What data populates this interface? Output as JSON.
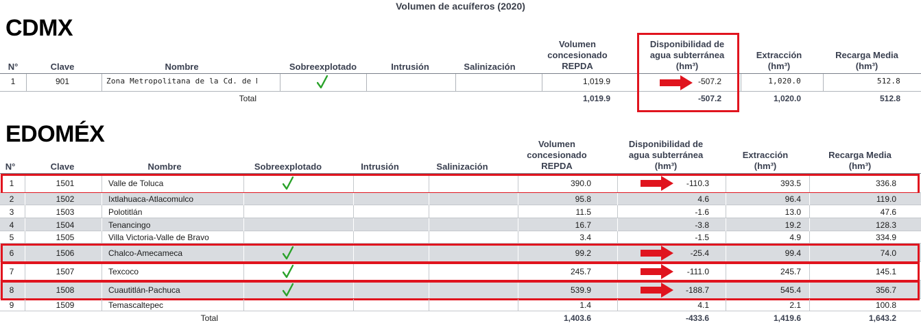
{
  "title": "Volumen de acuíferos (2020)",
  "colors": {
    "highlight": "#e0141e",
    "check": "#2aa22a",
    "row_gray": "#d9dce0"
  },
  "cdmx": {
    "heading": "CDMX",
    "headers": {
      "n": "N°",
      "clave": "Clave",
      "nombre": "Nombre",
      "sobre": "Sobreexplotado",
      "intrusion": "Intrusión",
      "salin": "Salinización",
      "vol_l1": "Volumen",
      "vol_l2": "concesionado",
      "vol_l3": "REPDA",
      "disp_l1": "Disponibilidad de",
      "disp_l2": "agua subterránea",
      "disp_l3": "(hm³)",
      "ext_l1": "Extracción",
      "ext_l2": "(hm³)",
      "rec_l1": "Recarga Media",
      "rec_l2": "(hm³)"
    },
    "rows": [
      {
        "n": "1",
        "clave": "901",
        "nombre": "Zona Metropolitana de la Cd. de México",
        "vol": "1,019.9",
        "disp": "-507.2",
        "ext": "1,020.0",
        "rec": "512.8"
      }
    ],
    "total": {
      "label": "Total",
      "vol": "1,019.9",
      "disp": "-507.2",
      "ext": "1,020.0",
      "rec": "512.8"
    }
  },
  "edomex": {
    "heading": "EDOMÉX",
    "headers": {
      "n": "N°",
      "clave": "Clave",
      "nombre": "Nombre",
      "sobre": "Sobreexplotado",
      "intrusion": "Intrusión",
      "salin": "Salinización",
      "vol_l1": "Volumen",
      "vol_l2": "concesionado",
      "vol_l3": "REPDA",
      "disp_l1": "Disponibilidad de",
      "disp_l2": "agua subterránea",
      "disp_l3": "(hm³)",
      "ext_l1": "Extracción",
      "ext_l2": "(hm³)",
      "rec_l1": "Recarga Media",
      "rec_l2": "(hm³)"
    },
    "rows": [
      {
        "n": "1",
        "clave": "1501",
        "nombre": "Valle de Toluca",
        "vol": "390.0",
        "disp": "-110.3",
        "ext": "393.5",
        "rec": "336.8"
      },
      {
        "n": "2",
        "clave": "1502",
        "nombre": "Ixtlahuaca-Atlacomulco",
        "vol": "95.8",
        "disp": "4.6",
        "ext": "96.4",
        "rec": "119.0"
      },
      {
        "n": "3",
        "clave": "1503",
        "nombre": "Polotitlán",
        "vol": "11.5",
        "disp": "-1.6",
        "ext": "13.0",
        "rec": "47.6"
      },
      {
        "n": "4",
        "clave": "1504",
        "nombre": "Tenancingo",
        "vol": "16.7",
        "disp": "-3.8",
        "ext": "19.2",
        "rec": "128.3"
      },
      {
        "n": "5",
        "clave": "1505",
        "nombre": "Villa Victoria-Valle de Bravo",
        "vol": "3.4",
        "disp": "-1.5",
        "ext": "4.9",
        "rec": "334.9"
      },
      {
        "n": "6",
        "clave": "1506",
        "nombre": "Chalco-Amecameca",
        "vol": "99.2",
        "disp": "-25.4",
        "ext": "99.4",
        "rec": "74.0"
      },
      {
        "n": "7",
        "clave": "1507",
        "nombre": "Texcoco",
        "vol": "245.7",
        "disp": "-111.0",
        "ext": "245.7",
        "rec": "145.1"
      },
      {
        "n": "8",
        "clave": "1508",
        "nombre": "Cuautitlán-Pachuca",
        "vol": "539.9",
        "disp": "-188.7",
        "ext": "545.4",
        "rec": "356.7"
      },
      {
        "n": "9",
        "clave": "1509",
        "nombre": "Temascaltepec",
        "vol": "1.4",
        "disp": "4.1",
        "ext": "2.1",
        "rec": "100.8"
      }
    ],
    "total": {
      "label": "Total",
      "vol": "1,403.6",
      "disp": "-433.6",
      "ext": "1,419.6",
      "rec": "1,643.2"
    }
  }
}
